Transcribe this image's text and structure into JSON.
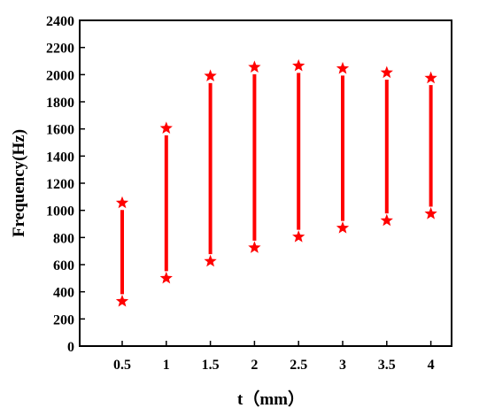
{
  "chart_data": {
    "type": "range-bar",
    "xlabel": "t（mm）",
    "ylabel": "Frequency(Hz)",
    "ylim": [
      0,
      2400
    ],
    "yticks": [
      0,
      200,
      400,
      600,
      800,
      1000,
      1200,
      1400,
      1600,
      1800,
      2000,
      2200,
      2400
    ],
    "categories": [
      "0.5",
      "1",
      "1.5",
      "2",
      "2.5",
      "3",
      "3.5",
      "4"
    ],
    "lower": [
      330,
      500,
      625,
      725,
      805,
      870,
      925,
      975
    ],
    "upper": [
      1055,
      1605,
      1990,
      2055,
      2065,
      2045,
      2015,
      1975
    ],
    "grid": false,
    "color": "#ff0000",
    "marker": "star"
  }
}
